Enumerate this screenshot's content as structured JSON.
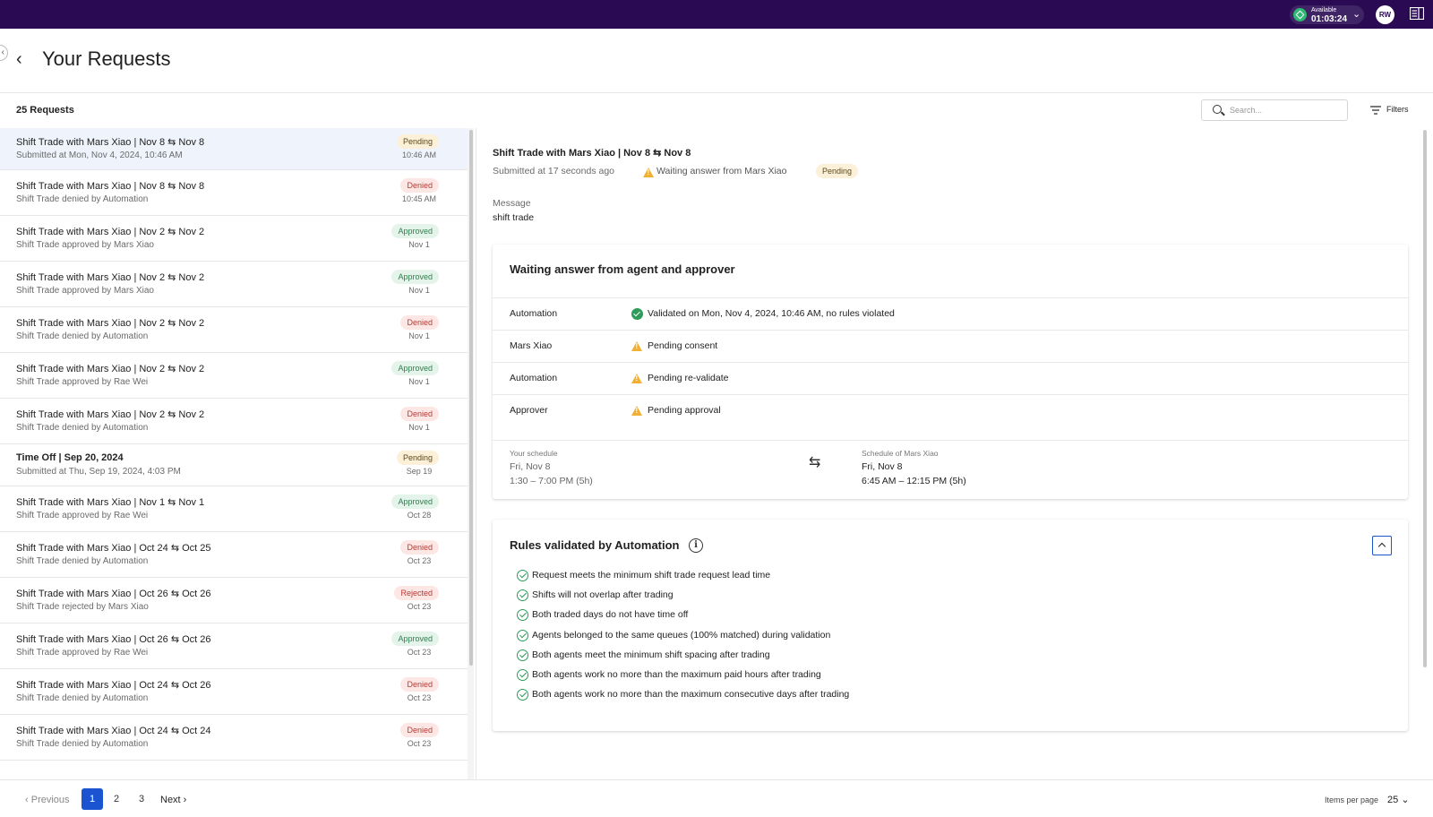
{
  "topbar": {
    "status_label": "Available",
    "status_time": "01:03:24",
    "avatar": "RW"
  },
  "page": {
    "title": "Your Requests",
    "count": "25 Requests"
  },
  "search": {
    "placeholder": "Search..."
  },
  "filters_label": "Filters",
  "requests": [
    {
      "title": "Shift Trade with Mars Xiao | Nov 8 ⇆ Nov 8",
      "sub": "Submitted at Mon, Nov 4, 2024, 10:46 AM",
      "status": "Pending",
      "date": "10:46 AM"
    },
    {
      "title": "Shift Trade with Mars Xiao | Nov 8 ⇆ Nov 8",
      "sub": "Shift Trade denied by Automation",
      "status": "Denied",
      "date": "10:45 AM"
    },
    {
      "title": "Shift Trade with Mars Xiao | Nov 2 ⇆ Nov 2",
      "sub": "Shift Trade approved by Mars Xiao",
      "status": "Approved",
      "date": "Nov 1"
    },
    {
      "title": "Shift Trade with Mars Xiao | Nov 2 ⇆ Nov 2",
      "sub": "Shift Trade approved by Mars Xiao",
      "status": "Approved",
      "date": "Nov 1"
    },
    {
      "title": "Shift Trade with Mars Xiao | Nov 2 ⇆ Nov 2",
      "sub": "Shift Trade denied by Automation",
      "status": "Denied",
      "date": "Nov 1"
    },
    {
      "title": "Shift Trade with Mars Xiao | Nov 2 ⇆ Nov 2",
      "sub": "Shift Trade approved by Rae Wei",
      "status": "Approved",
      "date": "Nov 1"
    },
    {
      "title": "Shift Trade with Mars Xiao | Nov 2 ⇆ Nov 2",
      "sub": "Shift Trade denied by Automation",
      "status": "Denied",
      "date": "Nov 1"
    },
    {
      "title": "Time Off | Sep 20, 2024",
      "sub": "Submitted at Thu, Sep 19, 2024, 4:03 PM",
      "status": "Pending",
      "date": "Sep 19"
    },
    {
      "title": "Shift Trade with Mars Xiao | Nov 1 ⇆ Nov 1",
      "sub": "Shift Trade approved by Rae Wei",
      "status": "Approved",
      "date": "Oct 28"
    },
    {
      "title": "Shift Trade with Mars Xiao | Oct 24 ⇆ Oct 25",
      "sub": "Shift Trade denied by Automation",
      "status": "Denied",
      "date": "Oct 23"
    },
    {
      "title": "Shift Trade with Mars Xiao | Oct 26 ⇆ Oct 26",
      "sub": "Shift Trade rejected by Mars Xiao",
      "status": "Rejected",
      "date": "Oct 23"
    },
    {
      "title": "Shift Trade with Mars Xiao | Oct 26 ⇆ Oct 26",
      "sub": "Shift Trade approved by Rae Wei",
      "status": "Approved",
      "date": "Oct 23"
    },
    {
      "title": "Shift Trade with Mars Xiao | Oct 24 ⇆ Oct 26",
      "sub": "Shift Trade denied by Automation",
      "status": "Denied",
      "date": "Oct 23"
    },
    {
      "title": "Shift Trade with Mars Xiao | Oct 24 ⇆ Oct 24",
      "sub": "Shift Trade denied by Automation",
      "status": "Denied",
      "date": "Oct 23"
    }
  ],
  "pager": {
    "previous": "Previous",
    "pages": [
      "1",
      "2",
      "3"
    ],
    "next": "Next",
    "items_per_page_label": "Items per page",
    "items_per_page": "25"
  },
  "detail": {
    "title": "Shift Trade with Mars Xiao | Nov 8 ⇆ Nov 8",
    "submitted": "Submitted at 17 seconds ago",
    "waiting": "Waiting answer from Mars Xiao",
    "status": "Pending",
    "message_label": "Message",
    "message": "shift trade",
    "card_title": "Waiting answer from agent and approver",
    "steps": [
      {
        "label": "Automation",
        "value": "Validated on Mon, Nov 4, 2024, 10:46 AM, no rules violated",
        "state": "ok"
      },
      {
        "label": "Mars Xiao",
        "value": "Pending consent",
        "state": "warn"
      },
      {
        "label": "Automation",
        "value": "Pending re-validate",
        "state": "warn"
      },
      {
        "label": "Approver",
        "value": "Pending approval",
        "state": "warn"
      }
    ],
    "your_schedule": {
      "label": "Your schedule",
      "day": "Fri, Nov 8",
      "time": "1:30 – 7:00 PM (5h)"
    },
    "other_schedule": {
      "label": "Schedule of Mars Xiao",
      "day": "Fri, Nov 8",
      "time": "6:45 AM – 12:15 PM (5h)"
    },
    "rules_title": "Rules validated by Automation",
    "rules": [
      "Request meets the minimum shift trade request lead time",
      "Shifts will not overlap after trading",
      "Both traded days do not have time off",
      "Agents belonged to the same queues (100% matched) during validation",
      "Both agents meet the minimum shift spacing after trading",
      "Both agents work no more than the maximum paid hours after trading",
      "Both agents work no more than the maximum consecutive days after trading"
    ]
  }
}
